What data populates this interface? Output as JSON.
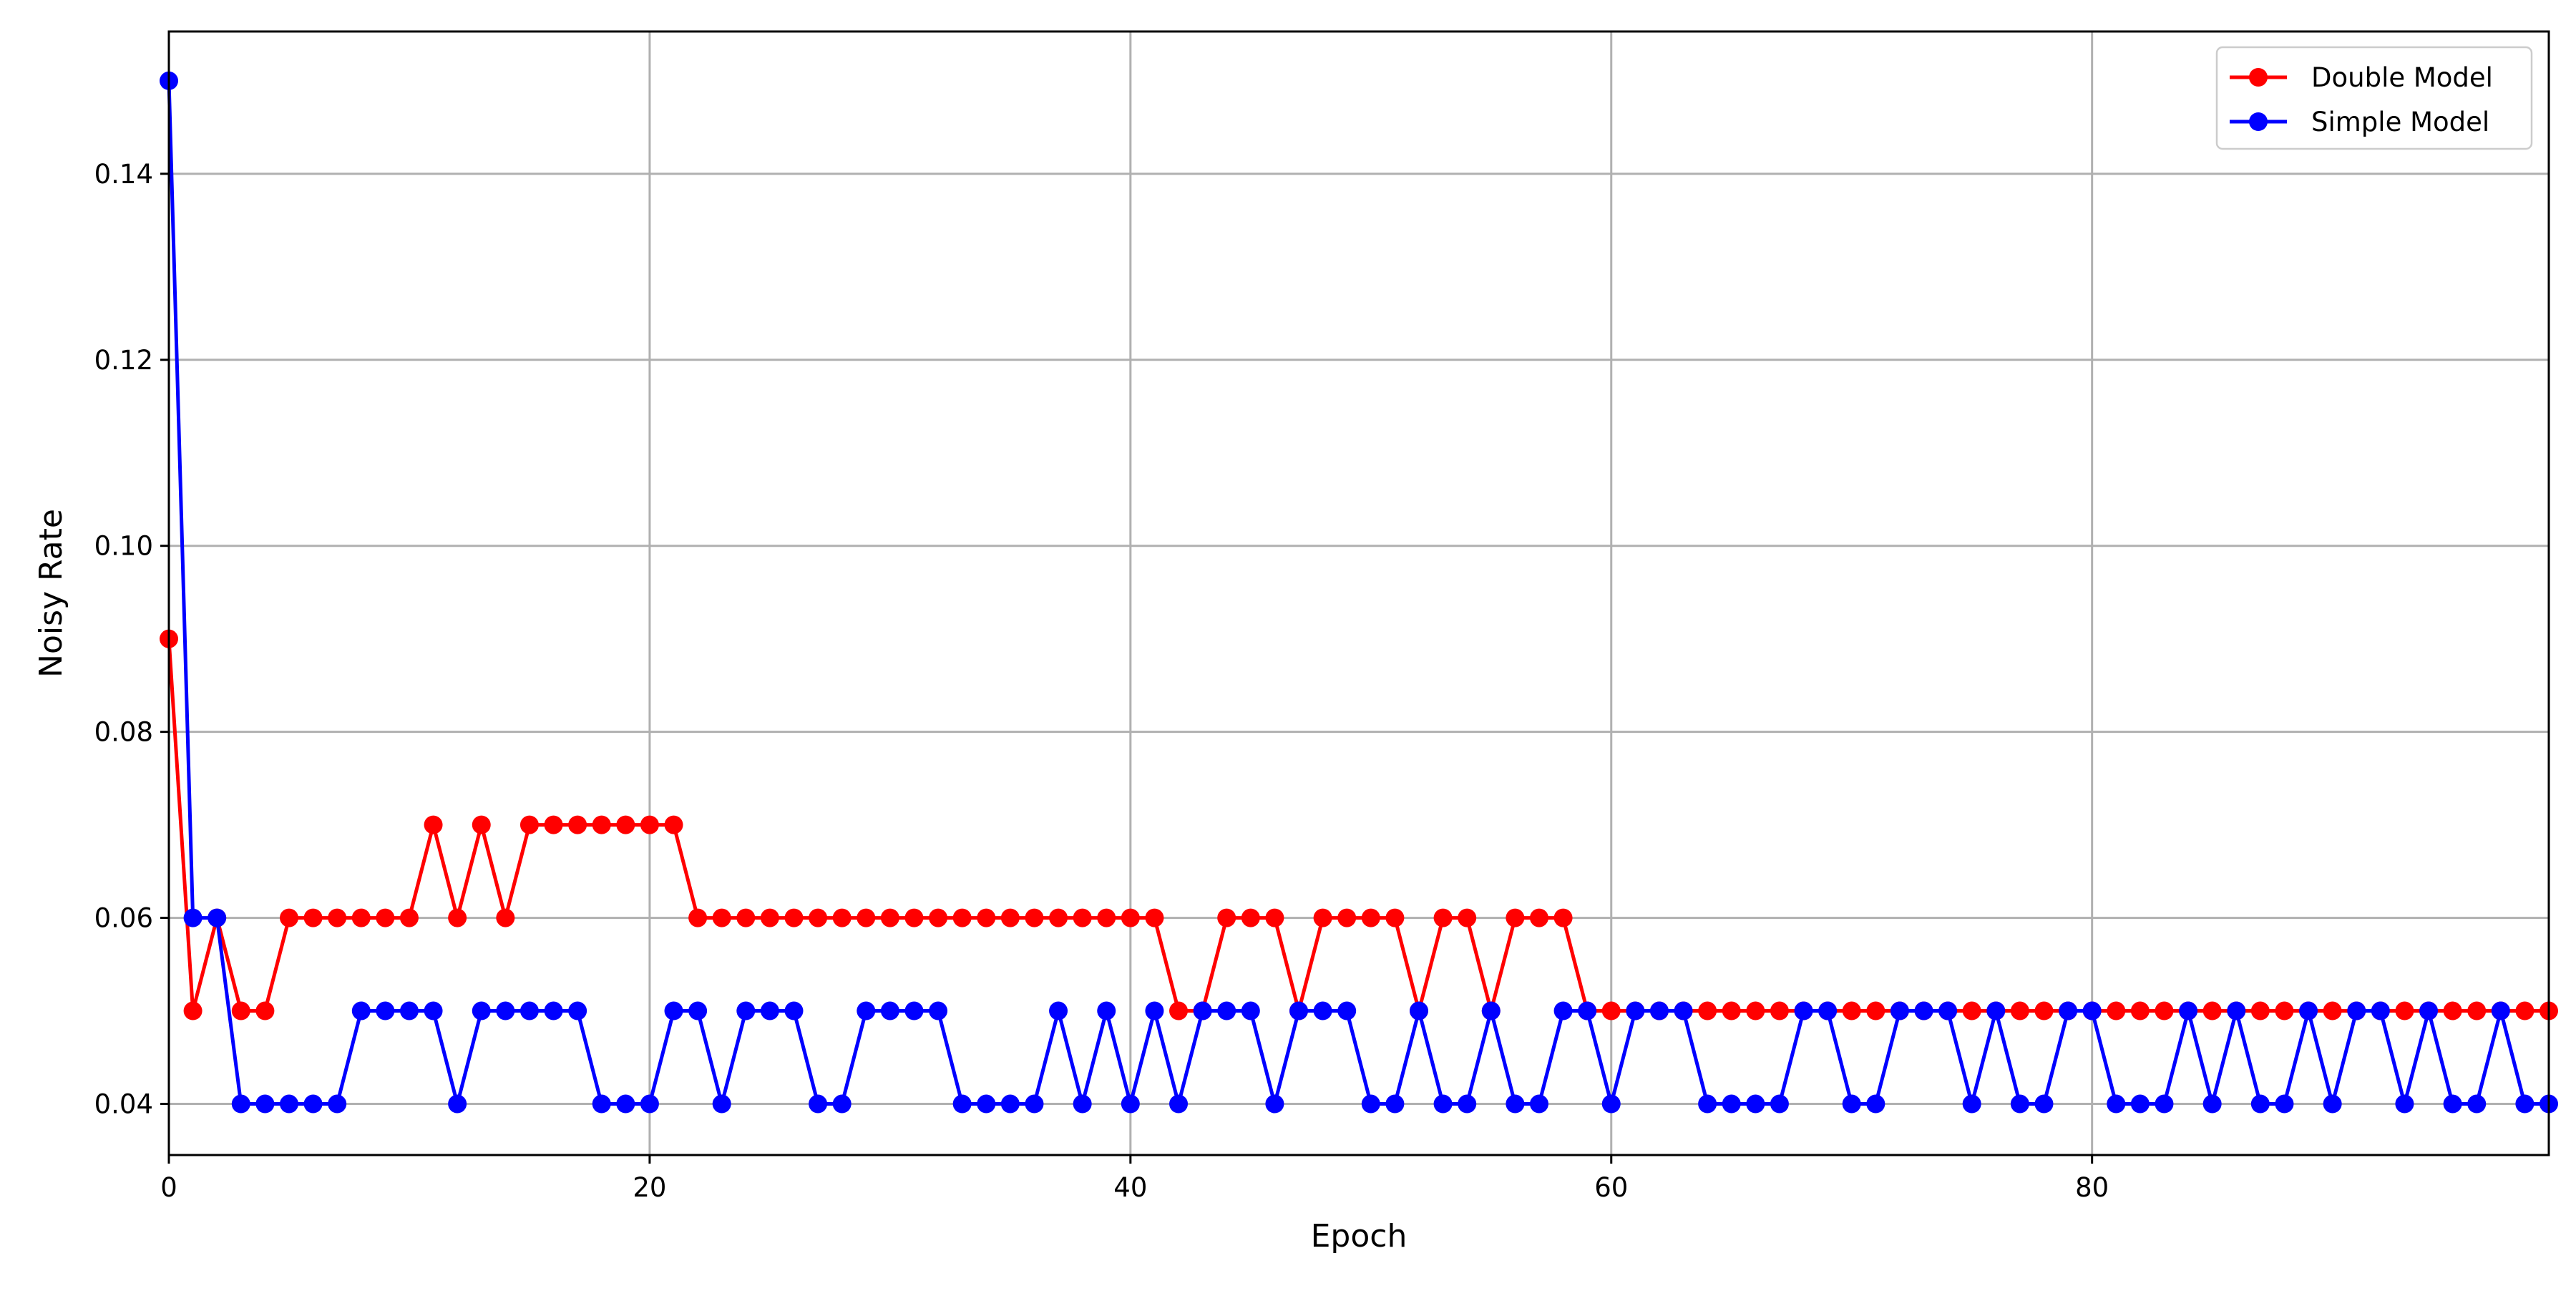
{
  "chart_data": {
    "type": "line",
    "title": "",
    "xlabel": "Epoch",
    "ylabel": "Noisy Rate",
    "xlim": [
      0,
      99
    ],
    "ylim": [
      0.0345,
      0.1553
    ],
    "xticks": [
      0,
      20,
      40,
      60,
      80
    ],
    "xtick_labels": [
      "0",
      "20",
      "40",
      "60",
      "80"
    ],
    "yticks": [
      0.04,
      0.06,
      0.08,
      0.1,
      0.12,
      0.14
    ],
    "ytick_labels": [
      "0.04",
      "0.06",
      "0.08",
      "0.10",
      "0.12",
      "0.14"
    ],
    "grid": true,
    "legend_position": "top-right",
    "x": [
      0,
      1,
      2,
      3,
      4,
      5,
      6,
      7,
      8,
      9,
      10,
      11,
      12,
      13,
      14,
      15,
      16,
      17,
      18,
      19,
      20,
      21,
      22,
      23,
      24,
      25,
      26,
      27,
      28,
      29,
      30,
      31,
      32,
      33,
      34,
      35,
      36,
      37,
      38,
      39,
      40,
      41,
      42,
      43,
      44,
      45,
      46,
      47,
      48,
      49,
      50,
      51,
      52,
      53,
      54,
      55,
      56,
      57,
      58,
      59,
      60,
      61,
      62,
      63,
      64,
      65,
      66,
      67,
      68,
      69,
      70,
      71,
      72,
      73,
      74,
      75,
      76,
      77,
      78,
      79,
      80,
      81,
      82,
      83,
      84,
      85,
      86,
      87,
      88,
      89,
      90,
      91,
      92,
      93,
      94,
      95,
      96,
      97,
      98,
      99
    ],
    "series": [
      {
        "name": "Double Model",
        "color": "#ff0000",
        "marker": "circle",
        "values": [
          0.09,
          0.05,
          0.06,
          0.05,
          0.05,
          0.06,
          0.06,
          0.06,
          0.06,
          0.06,
          0.06,
          0.07,
          0.06,
          0.07,
          0.06,
          0.07,
          0.07,
          0.07,
          0.07,
          0.07,
          0.07,
          0.07,
          0.06,
          0.06,
          0.06,
          0.06,
          0.06,
          0.06,
          0.06,
          0.06,
          0.06,
          0.06,
          0.06,
          0.06,
          0.06,
          0.06,
          0.06,
          0.06,
          0.06,
          0.06,
          0.06,
          0.06,
          0.05,
          0.05,
          0.06,
          0.06,
          0.06,
          0.05,
          0.06,
          0.06,
          0.06,
          0.06,
          0.05,
          0.06,
          0.06,
          0.05,
          0.06,
          0.06,
          0.06,
          0.05,
          0.05,
          0.05,
          0.05,
          0.05,
          0.05,
          0.05,
          0.05,
          0.05,
          0.05,
          0.05,
          0.05,
          0.05,
          0.05,
          0.05,
          0.05,
          0.05,
          0.05,
          0.05,
          0.05,
          0.05,
          0.05,
          0.05,
          0.05,
          0.05,
          0.05,
          0.05,
          0.05,
          0.05,
          0.05,
          0.05,
          0.05,
          0.05,
          0.05,
          0.05,
          0.05,
          0.05,
          0.05,
          0.05,
          0.05,
          0.05
        ]
      },
      {
        "name": "Simple Model",
        "color": "#0000ff",
        "marker": "circle",
        "values": [
          0.15,
          0.06,
          0.06,
          0.04,
          0.04,
          0.04,
          0.04,
          0.04,
          0.05,
          0.05,
          0.05,
          0.05,
          0.04,
          0.05,
          0.05,
          0.05,
          0.05,
          0.05,
          0.04,
          0.04,
          0.04,
          0.05,
          0.05,
          0.04,
          0.05,
          0.05,
          0.05,
          0.04,
          0.04,
          0.05,
          0.05,
          0.05,
          0.05,
          0.04,
          0.04,
          0.04,
          0.04,
          0.05,
          0.04,
          0.05,
          0.04,
          0.05,
          0.04,
          0.05,
          0.05,
          0.05,
          0.04,
          0.05,
          0.05,
          0.05,
          0.04,
          0.04,
          0.05,
          0.04,
          0.04,
          0.05,
          0.04,
          0.04,
          0.05,
          0.05,
          0.04,
          0.05,
          0.05,
          0.05,
          0.04,
          0.04,
          0.04,
          0.04,
          0.05,
          0.05,
          0.04,
          0.04,
          0.05,
          0.05,
          0.05,
          0.04,
          0.05,
          0.04,
          0.04,
          0.05,
          0.05,
          0.04,
          0.04,
          0.04,
          0.05,
          0.04,
          0.05,
          0.04,
          0.04,
          0.05,
          0.04,
          0.05,
          0.05,
          0.04,
          0.05,
          0.04,
          0.04,
          0.05,
          0.04,
          0.04
        ]
      }
    ]
  }
}
